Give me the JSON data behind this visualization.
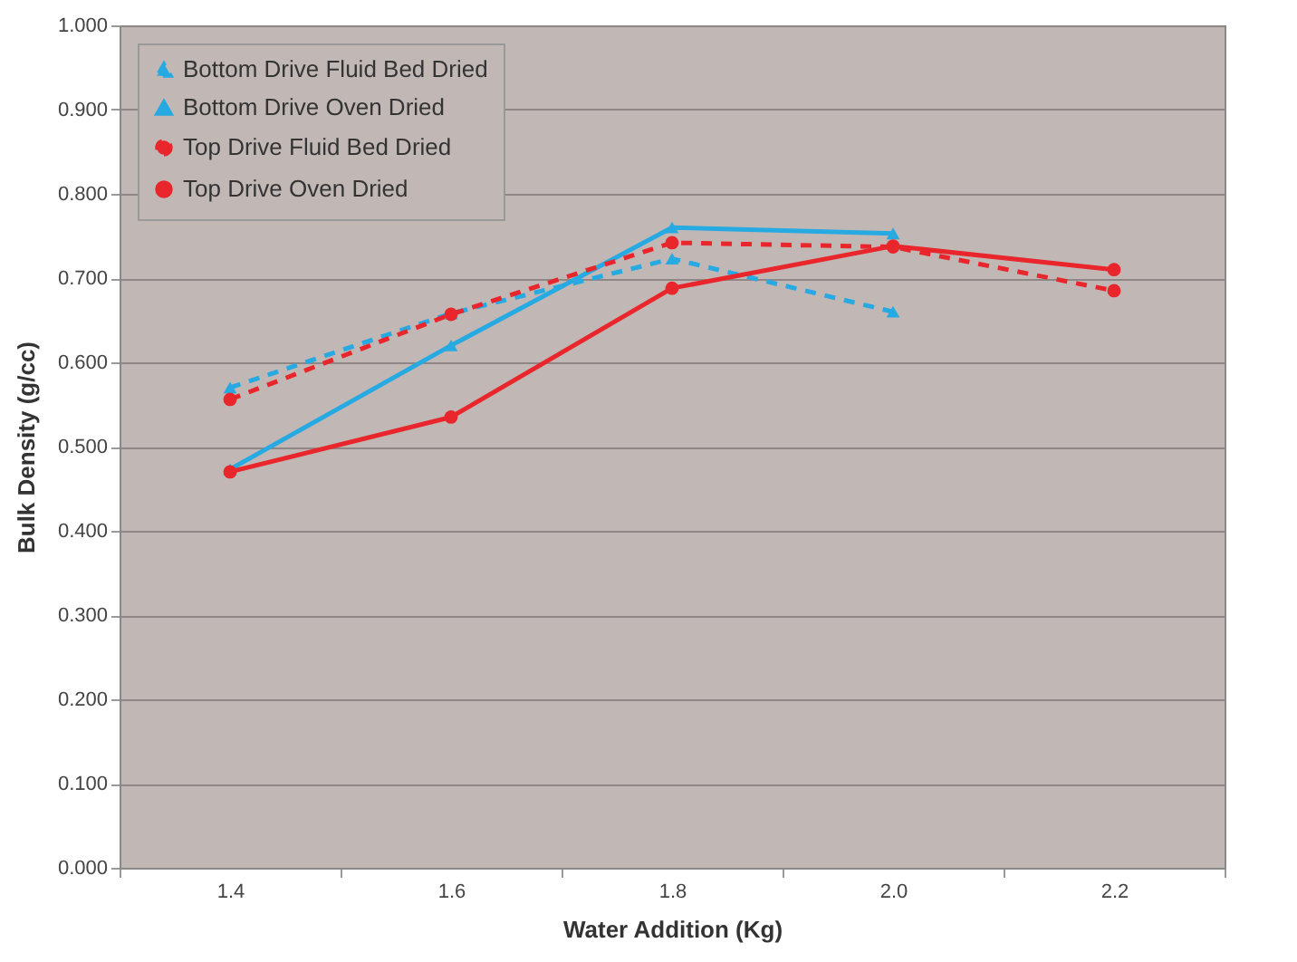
{
  "chart_data": {
    "type": "line",
    "xlabel": "Water Addition (Kg)",
    "ylabel": "Bulk Density (g/cc)",
    "categories": [
      "1.4",
      "1.6",
      "1.8",
      "2.0",
      "2.2"
    ],
    "series": [
      {
        "name": "Bottom Drive Fluid Bed Dried",
        "color": "#27a9e1",
        "line_style": "dashed",
        "marker": "triangle",
        "values": [
          0.57,
          0.658,
          0.723,
          0.66,
          null
        ]
      },
      {
        "name": "Bottom Drive Oven Dried",
        "color": "#27a9e1",
        "line_style": "solid",
        "marker": "triangle",
        "values": [
          0.473,
          0.62,
          0.76,
          0.753,
          null
        ]
      },
      {
        "name": "Top Drive Fluid Bed Dried",
        "color": "#e8262b",
        "line_style": "dashed",
        "marker": "circle",
        "values": [
          0.556,
          0.657,
          0.742,
          0.737,
          0.685
        ]
      },
      {
        "name": "Top Drive Oven Dried",
        "color": "#e8262b",
        "line_style": "solid",
        "marker": "circle",
        "values": [
          0.47,
          0.535,
          0.688,
          0.738,
          0.71
        ]
      }
    ],
    "ylim": [
      0,
      1
    ],
    "yticks": [
      {
        "value": 0,
        "label": "0.000"
      },
      {
        "value": 0.1,
        "label": "0.100"
      },
      {
        "value": 0.2,
        "label": "0.200"
      },
      {
        "value": 0.3,
        "label": "0.300"
      },
      {
        "value": 0.4,
        "label": "0.400"
      },
      {
        "value": 0.5,
        "label": "0.500"
      },
      {
        "value": 0.6,
        "label": "0.600"
      },
      {
        "value": 0.7,
        "label": "0.700"
      },
      {
        "value": 0.8,
        "label": "0.800"
      },
      {
        "value": 0.9,
        "label": "0.900"
      },
      {
        "value": 1,
        "label": "1.000"
      }
    ],
    "grid": "y",
    "legend": "top left"
  }
}
